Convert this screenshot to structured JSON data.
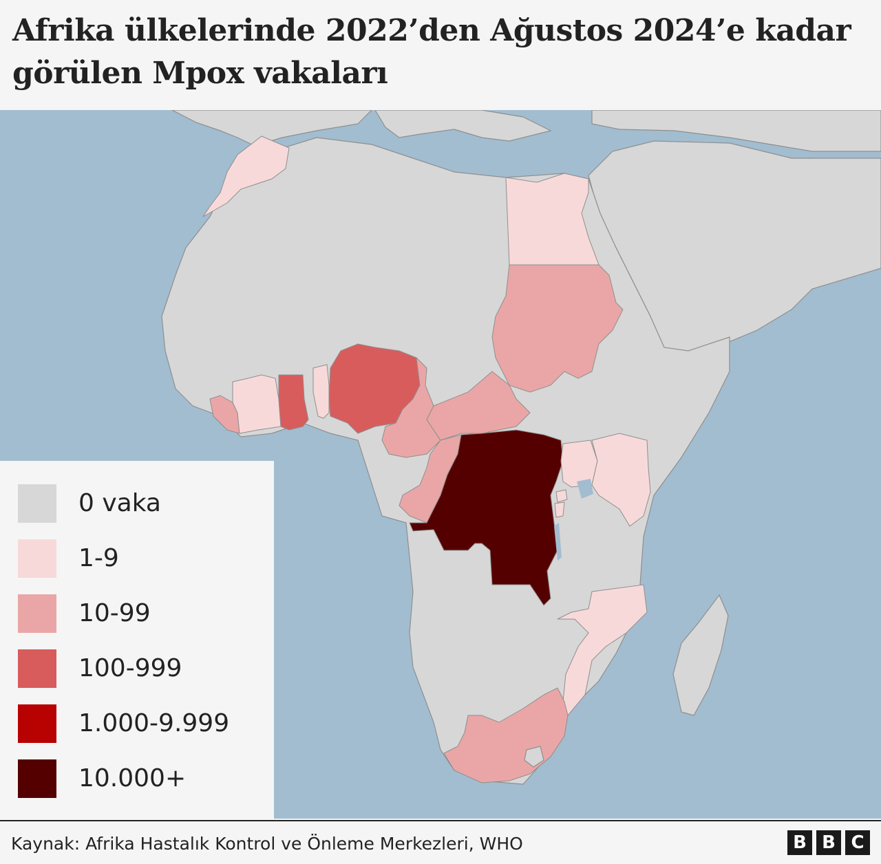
{
  "title": "Afrika ülkelerinde 2022’den Ağustos 2024’e kadar görülen Mpox vakaları",
  "colors": {
    "sea": "#a2bdd0",
    "land_other": "#d7d7d7",
    "border": "#8e8e8e",
    "0": "#d7d7d7",
    "1-9": "#f8d9d9",
    "10-99": "#eaa6a6",
    "100-999": "#d85c5c",
    "1000-9999": "#b80101",
    "10000+": "#550000"
  },
  "legend": [
    {
      "label": "0 vaka",
      "color": "#d7d7d7"
    },
    {
      "label": "1-9",
      "color": "#f8d9d9"
    },
    {
      "label": "10-99",
      "color": "#eaa6a6"
    },
    {
      "label": "100-999",
      "color": "#d85c5c"
    },
    {
      "label": "1.000-9.999",
      "color": "#b80101"
    },
    {
      "label": "10.000+",
      "color": "#550000"
    }
  ],
  "map": {
    "countries": [
      {
        "id": "morocco",
        "category": "1-9"
      },
      {
        "id": "egypt",
        "category": "1-9"
      },
      {
        "id": "sudan",
        "category": "10-99"
      },
      {
        "id": "liberia",
        "category": "10-99"
      },
      {
        "id": "cote-divoire",
        "category": "1-9"
      },
      {
        "id": "ghana",
        "category": "100-999"
      },
      {
        "id": "benin",
        "category": "1-9"
      },
      {
        "id": "nigeria",
        "category": "100-999"
      },
      {
        "id": "cameroon",
        "category": "10-99"
      },
      {
        "id": "central-african-republic",
        "category": "10-99"
      },
      {
        "id": "republic-of-congo",
        "category": "10-99"
      },
      {
        "id": "dr-congo",
        "category": "10000+"
      },
      {
        "id": "uganda",
        "category": "1-9"
      },
      {
        "id": "kenya",
        "category": "1-9"
      },
      {
        "id": "rwanda",
        "category": "1-9"
      },
      {
        "id": "burundi",
        "category": "1-9"
      },
      {
        "id": "mozambique",
        "category": "1-9"
      },
      {
        "id": "south-africa",
        "category": "10-99"
      }
    ]
  },
  "source": "Kaynak: Afrika Hastalık Kontrol ve Önleme Merkezleri, WHO",
  "logo": [
    "B",
    "B",
    "C"
  ]
}
